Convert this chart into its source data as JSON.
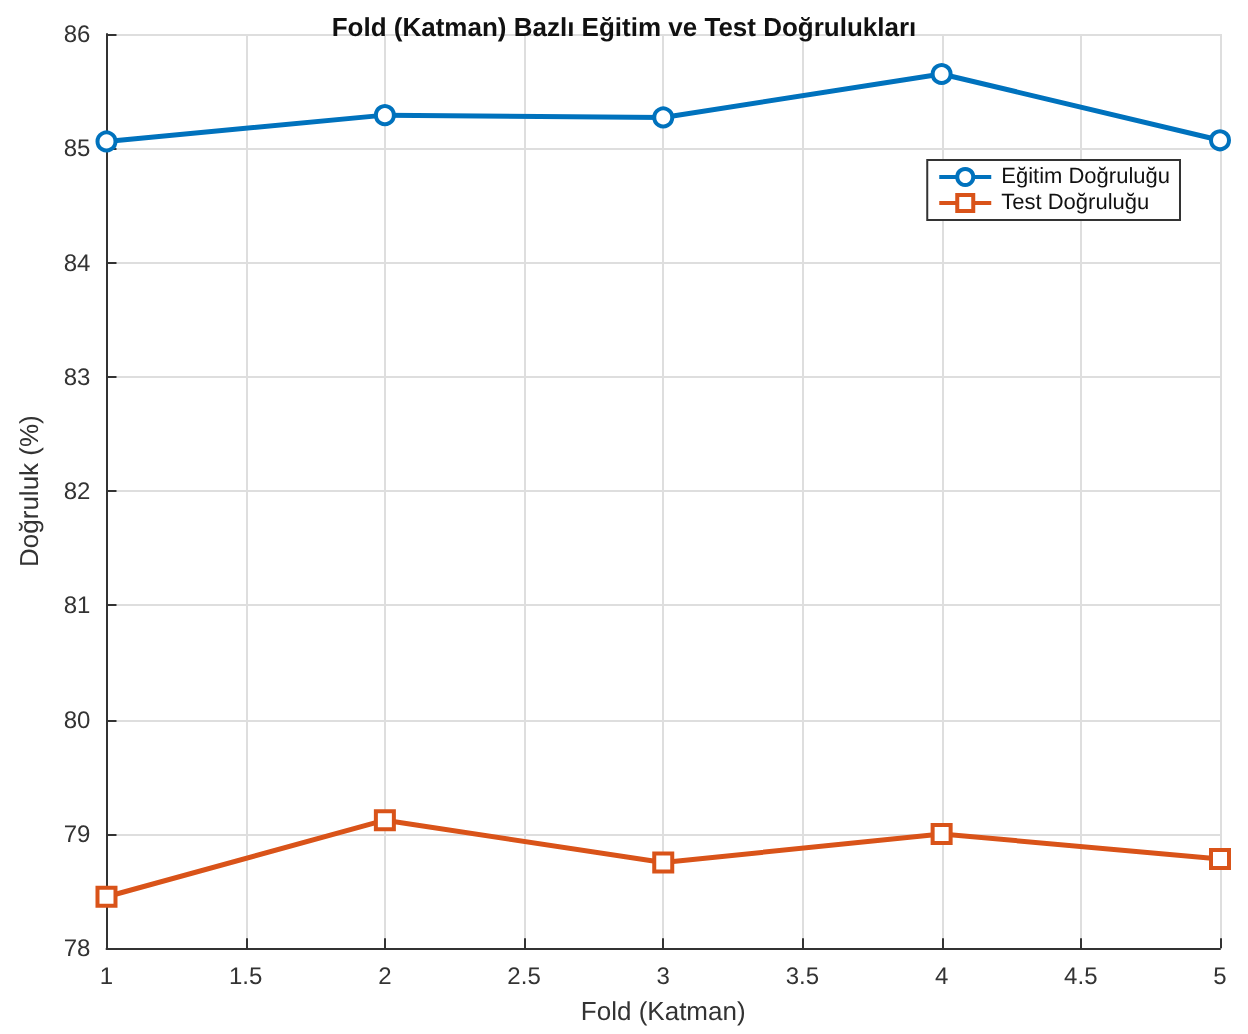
{
  "chart_data": {
    "type": "line",
    "title": "Fold (Katman) Bazlı Eğitim ve Test Doğrulukları",
    "xlabel": "Fold (Katman)",
    "ylabel": "Doğruluk (%)",
    "x": [
      1,
      2,
      3,
      4,
      5
    ],
    "series": [
      {
        "name": "Eğitim Doğruluğu",
        "color": "#0072bd",
        "marker": "circle",
        "values": [
          85.06,
          85.29,
          85.27,
          85.65,
          85.07
        ]
      },
      {
        "name": "Test Doğruluğu",
        "color": "#d95319",
        "marker": "square",
        "values": [
          78.45,
          79.12,
          78.75,
          79.0,
          78.78
        ]
      }
    ],
    "xlim": [
      1,
      5
    ],
    "xticks": [
      1,
      1.5,
      2,
      2.5,
      3,
      3.5,
      4,
      4.5,
      5
    ],
    "ylim": [
      78,
      86
    ],
    "yticks": [
      78,
      79,
      80,
      81,
      82,
      83,
      84,
      85,
      86
    ],
    "grid": true,
    "legend": "top right",
    "line_style": "solid"
  }
}
